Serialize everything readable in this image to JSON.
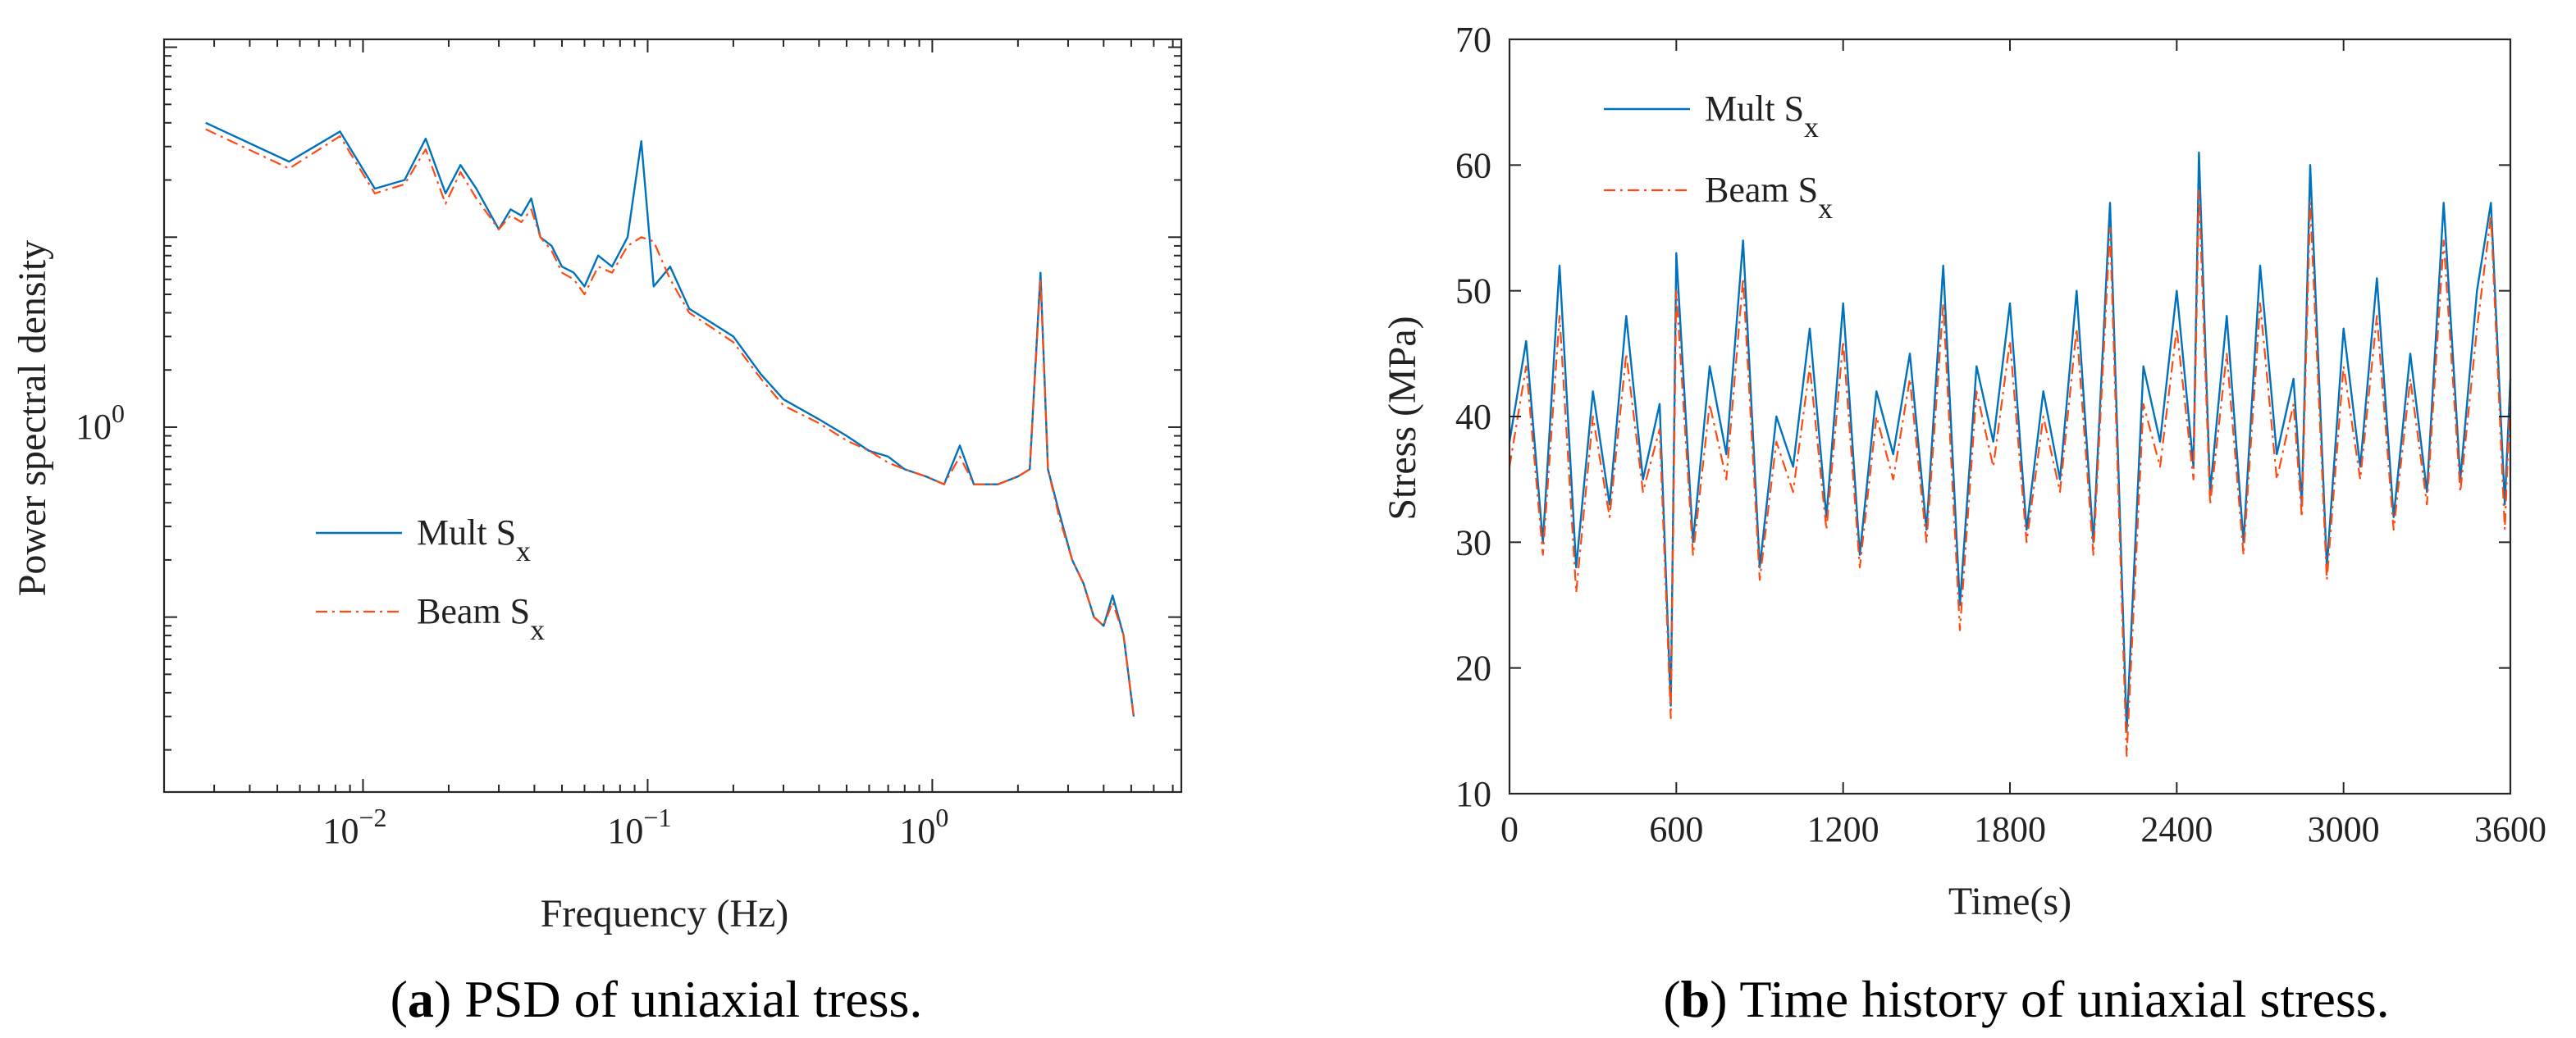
{
  "colors": {
    "mult": "#0072BD",
    "beam": "#FF4A12",
    "axis": "#262626"
  },
  "chart_data": [
    {
      "type": "line",
      "title": "",
      "caption": {
        "letter": "a",
        "text": ") PSD of uniaxial tress."
      },
      "xlabel": "Frequency (Hz)",
      "ylabel": "Power spectral density",
      "x_scale": "log",
      "y_scale": "log",
      "xlim": [
        0.002,
        7.5
      ],
      "ylim": [
        0.012,
        110
      ],
      "x_ticks": [
        {
          "value": 0.01,
          "base": "10",
          "exp": "−2"
        },
        {
          "value": 0.1,
          "base": "10",
          "exp": "−1"
        },
        {
          "value": 1,
          "base": "10",
          "exp": "0"
        }
      ],
      "y_ticks": [
        {
          "value": 1,
          "base": "10",
          "exp": "0"
        }
      ],
      "grid": false,
      "legend": {
        "position": "center-left",
        "items": [
          {
            "label": "Mult S",
            "sub": "x",
            "style": "solid"
          },
          {
            "label": "Beam S",
            "sub": "x",
            "style": "dashdot"
          }
        ]
      },
      "series": [
        {
          "name": "Mult Sx",
          "x": [
            0.0028,
            0.0055,
            0.0083,
            0.011,
            0.014,
            0.0166,
            0.0195,
            0.022,
            0.025,
            0.03,
            0.033,
            0.036,
            0.039,
            0.042,
            0.046,
            0.05,
            0.055,
            0.06,
            0.067,
            0.075,
            0.085,
            0.095,
            0.105,
            0.12,
            0.14,
            0.17,
            0.2,
            0.25,
            0.3,
            0.4,
            0.5,
            0.6,
            0.7,
            0.8,
            0.95,
            1.1,
            1.25,
            1.4,
            1.7,
            2.0,
            2.2,
            2.4,
            2.55,
            2.8,
            3.1,
            3.4,
            3.7,
            4.0,
            4.3,
            4.7,
            5.1
          ],
          "y": [
            40,
            25,
            36,
            18,
            20,
            33,
            17,
            24,
            18,
            11,
            14,
            13,
            16,
            10,
            9,
            7,
            6.5,
            5.5,
            8,
            7,
            10,
            32,
            5.5,
            7,
            4.2,
            3.5,
            3,
            1.9,
            1.4,
            1.1,
            0.9,
            0.75,
            0.7,
            0.6,
            0.55,
            0.5,
            0.8,
            0.5,
            0.5,
            0.55,
            0.6,
            6.5,
            0.6,
            0.35,
            0.2,
            0.15,
            0.1,
            0.09,
            0.13,
            0.08,
            0.03
          ]
        },
        {
          "name": "Beam Sx",
          "x": [
            0.0028,
            0.0055,
            0.0083,
            0.011,
            0.014,
            0.0166,
            0.0195,
            0.022,
            0.025,
            0.03,
            0.033,
            0.036,
            0.039,
            0.042,
            0.046,
            0.05,
            0.055,
            0.06,
            0.067,
            0.075,
            0.085,
            0.095,
            0.105,
            0.12,
            0.14,
            0.17,
            0.2,
            0.25,
            0.3,
            0.4,
            0.5,
            0.6,
            0.7,
            0.8,
            0.95,
            1.1,
            1.25,
            1.4,
            1.7,
            2.0,
            2.2,
            2.4,
            2.55,
            2.8,
            3.1,
            3.4,
            3.7,
            4.0,
            4.3,
            4.7,
            5.1
          ],
          "y": [
            37,
            23,
            34,
            17,
            19,
            29,
            15,
            22,
            16,
            11,
            13,
            12,
            14,
            10,
            8.5,
            6.5,
            6,
            5,
            7,
            6.5,
            9,
            10,
            9.5,
            6,
            4,
            3.3,
            2.8,
            1.8,
            1.3,
            1.05,
            0.85,
            0.75,
            0.65,
            0.6,
            0.55,
            0.5,
            0.7,
            0.5,
            0.5,
            0.55,
            0.6,
            6,
            0.6,
            0.33,
            0.2,
            0.15,
            0.1,
            0.09,
            0.12,
            0.08,
            0.03
          ]
        }
      ]
    },
    {
      "type": "line",
      "title": "",
      "caption": {
        "letter": "b",
        "text": ") Time history of uniaxial stress."
      },
      "xlabel": "Time(s)",
      "ylabel": "Stress (MPa)",
      "xlim": [
        0,
        3600
      ],
      "ylim": [
        10,
        70
      ],
      "x_ticks": [
        0,
        600,
        1200,
        1800,
        2400,
        3000,
        3600
      ],
      "y_ticks": [
        10,
        20,
        30,
        40,
        50,
        60,
        70
      ],
      "grid": false,
      "legend": {
        "position": "top-left",
        "items": [
          {
            "label": "Mult S",
            "sub": "x",
            "style": "solid"
          },
          {
            "label": "Beam S",
            "sub": "x",
            "style": "dashdot"
          }
        ]
      },
      "series": [
        {
          "name": "Mult Sx",
          "x": [
            0,
            60,
            120,
            180,
            240,
            300,
            360,
            420,
            480,
            540,
            580,
            600,
            660,
            720,
            780,
            840,
            900,
            960,
            1020,
            1080,
            1140,
            1200,
            1260,
            1320,
            1380,
            1440,
            1500,
            1560,
            1620,
            1680,
            1740,
            1800,
            1860,
            1920,
            1980,
            2040,
            2100,
            2160,
            2220,
            2280,
            2340,
            2400,
            2460,
            2480,
            2520,
            2580,
            2640,
            2700,
            2760,
            2820,
            2850,
            2880,
            2940,
            3000,
            3060,
            3120,
            3180,
            3240,
            3300,
            3360,
            3420,
            3480,
            3530,
            3580,
            3600
          ],
          "y": [
            38,
            46,
            30,
            52,
            28,
            42,
            33,
            48,
            35,
            41,
            17,
            53,
            30,
            44,
            37,
            54,
            28,
            40,
            36,
            47,
            32,
            49,
            29,
            42,
            37,
            45,
            31,
            52,
            25,
            44,
            38,
            49,
            31,
            42,
            35,
            50,
            30,
            57,
            15,
            44,
            38,
            50,
            36,
            61,
            34,
            48,
            30,
            52,
            37,
            43,
            33,
            60,
            28,
            47,
            36,
            51,
            32,
            45,
            34,
            57,
            35,
            50,
            57,
            33,
            43
          ]
        },
        {
          "name": "Beam Sx",
          "x": [
            0,
            60,
            120,
            180,
            240,
            300,
            360,
            420,
            480,
            540,
            580,
            600,
            660,
            720,
            780,
            840,
            900,
            960,
            1020,
            1080,
            1140,
            1200,
            1260,
            1320,
            1380,
            1440,
            1500,
            1560,
            1620,
            1680,
            1740,
            1800,
            1860,
            1920,
            1980,
            2040,
            2100,
            2160,
            2220,
            2280,
            2340,
            2400,
            2460,
            2480,
            2520,
            2580,
            2640,
            2700,
            2760,
            2820,
            2850,
            2880,
            2940,
            3000,
            3060,
            3120,
            3180,
            3240,
            3300,
            3360,
            3420,
            3480,
            3530,
            3580,
            3600
          ],
          "y": [
            36,
            44,
            29,
            48,
            26,
            40,
            32,
            45,
            34,
            39,
            16,
            50,
            29,
            41,
            35,
            51,
            27,
            38,
            34,
            44,
            31,
            46,
            28,
            40,
            35,
            43,
            30,
            49,
            23,
            42,
            36,
            46,
            30,
            40,
            34,
            47,
            29,
            55,
            13,
            41,
            36,
            47,
            35,
            58,
            33,
            45,
            29,
            49,
            35,
            41,
            32,
            57,
            27,
            44,
            35,
            48,
            31,
            43,
            33,
            54,
            34,
            47,
            56,
            31,
            42
          ]
        }
      ]
    }
  ]
}
